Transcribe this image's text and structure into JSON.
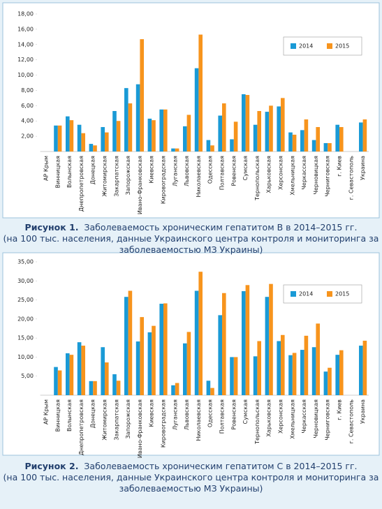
{
  "chart_data": [
    {
      "type": "bar",
      "figure_label": "Рисунок 1.",
      "title": "Заболеваемость хроническим гепатитом В в 2014–2015 гг.",
      "subtitle": "(на 100 тыс. населения, данные Украинского центра контроля и мониторинга за заболеваемостью МЗ Украины)",
      "categories": [
        "АР Крым",
        "Винницкая",
        "Волынская",
        "Днепропетровская",
        "Донецкая",
        "Житомирская",
        "Закарпатская",
        "Запорожская",
        "Ивано-Франковская",
        "Киевская",
        "Кировоградская",
        "Луганская",
        "Львовская",
        "Николаевская",
        "Одесская",
        "Полтавская",
        "Ровенская",
        "Сумская",
        "Тернопольская",
        "Харьковская",
        "Херсонская",
        "Хмельницкая",
        "Черкасская",
        "Черновицкая",
        "Черниговская",
        "г. Киев",
        "г. Севастополь",
        "Украина"
      ],
      "series": [
        {
          "name": "2014",
          "color": "#1a9ad6",
          "values": [
            null,
            3.4,
            4.6,
            3.5,
            1.0,
            3.2,
            5.3,
            8.3,
            8.8,
            4.3,
            5.5,
            0.4,
            3.3,
            10.9,
            1.5,
            4.7,
            1.6,
            7.5,
            3.5,
            5.2,
            5.9,
            2.5,
            2.8,
            1.5,
            1.1,
            3.5,
            null,
            3.8
          ]
        },
        {
          "name": "2015",
          "color": "#f7941d",
          "values": [
            null,
            3.4,
            4.1,
            2.4,
            0.8,
            2.5,
            4.0,
            6.3,
            14.7,
            4.1,
            5.5,
            0.4,
            4.8,
            15.3,
            0.8,
            6.3,
            3.9,
            7.4,
            5.3,
            6.0,
            7.0,
            2.2,
            4.2,
            3.2,
            1.1,
            3.2,
            null,
            4.2
          ]
        }
      ],
      "ylim": [
        0,
        18
      ],
      "yticks": [
        {
          "value": 2,
          "label": "2,00"
        },
        {
          "value": 4,
          "label": "4,00"
        },
        {
          "value": 6,
          "label": "6,00"
        },
        {
          "value": 8,
          "label": "8,00"
        },
        {
          "value": 10,
          "label": "10,00"
        },
        {
          "value": 12,
          "label": "12,00"
        },
        {
          "value": 14,
          "label": "14,00"
        },
        {
          "value": 16,
          "label": "16,00"
        },
        {
          "value": 18,
          "label": "18,00"
        }
      ],
      "grid": false,
      "legend": "upper right"
    },
    {
      "type": "bar",
      "figure_label": "Рисунок 2.",
      "title": "Заболеваемость хроническим гепатитом С в 2014–2015 гг.",
      "subtitle": "(на 100 тыс. населения, данные Украинского центра контроля и мониторинга за заболеваемостью МЗ Украины)",
      "categories": [
        "АР Крым",
        "Винницкая",
        "Волынская",
        "Днепропетровская",
        "Донецкая",
        "Житомирская",
        "Закарпатская",
        "Запорожская",
        "Ивано-Франковская",
        "Киевская",
        "Кировоградская",
        "Луганская",
        "Львовская",
        "Николаевская",
        "Одесская",
        "Полтавская",
        "Ровенская",
        "Сумская",
        "Тернопольская",
        "Харьковская",
        "Херсонская",
        "Хмельницкая",
        "Черкасская",
        "Черновицкая",
        "Черниговская",
        "г. Киев",
        "г. Севастополь",
        "Украина"
      ],
      "series": [
        {
          "name": "2014",
          "color": "#1a9ad6",
          "values": [
            null,
            7.4,
            11.0,
            13.9,
            3.7,
            12.6,
            5.5,
            25.8,
            14.1,
            16.5,
            24.0,
            2.6,
            13.6,
            27.4,
            3.8,
            21.0,
            10.0,
            27.3,
            10.2,
            25.8,
            14.2,
            10.5,
            11.9,
            12.6,
            6.2,
            10.6,
            null,
            13.0
          ]
        },
        {
          "name": "2015",
          "color": "#f7941d",
          "values": [
            null,
            6.5,
            10.6,
            13.0,
            3.7,
            8.6,
            3.8,
            27.4,
            20.5,
            18.2,
            24.1,
            3.2,
            16.6,
            32.4,
            1.9,
            26.8,
            10.0,
            28.9,
            14.2,
            29.2,
            15.8,
            11.1,
            15.6,
            18.8,
            7.2,
            11.8,
            null,
            14.3
          ]
        }
      ],
      "ylim": [
        0,
        35
      ],
      "yticks": [
        {
          "value": 5,
          "label": "5,00"
        },
        {
          "value": 10,
          "label": "10,00"
        },
        {
          "value": 15,
          "label": "15,00"
        },
        {
          "value": 20,
          "label": "20,00"
        },
        {
          "value": 25,
          "label": "25,00"
        },
        {
          "value": 30,
          "label": "30,00"
        },
        {
          "value": 35,
          "label": "35,00"
        }
      ],
      "grid": false,
      "legend": "upper right"
    }
  ]
}
